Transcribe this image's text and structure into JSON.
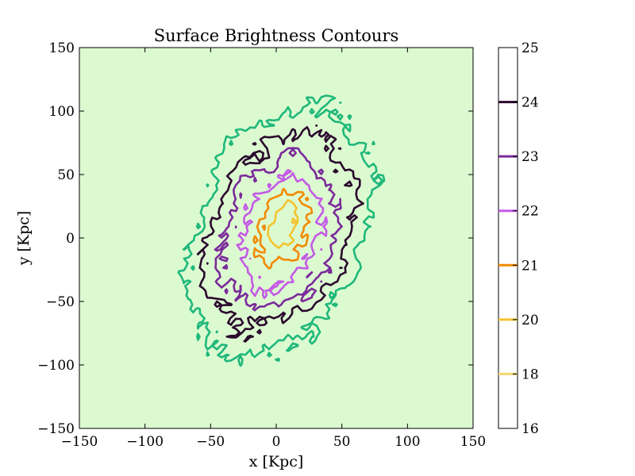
{
  "chart_data": {
    "type": "contour",
    "title": "Surface Brightness Contours",
    "xlabel": "x [Kpc]",
    "ylabel": "y [Kpc]",
    "xlim": [
      -150,
      150
    ],
    "ylim": [
      -150,
      150
    ],
    "x_ticks": [
      -150,
      -100,
      -50,
      0,
      50,
      100,
      150
    ],
    "y_ticks": [
      -150,
      -100,
      -50,
      0,
      50,
      100,
      150
    ],
    "x_tick_labels": [
      "−150",
      "−100",
      "−50",
      "0",
      "50",
      "100",
      "150"
    ],
    "y_tick_labels": [
      "−150",
      "−100",
      "−50",
      "0",
      "50",
      "100",
      "150"
    ],
    "background_color": "#dcfad0",
    "levels": [
      {
        "value": 16,
        "label": "16",
        "color": "#fff3a0"
      },
      {
        "value": 18,
        "label": "18",
        "color": "#f5d76e"
      },
      {
        "value": 20,
        "label": "20",
        "color": "#f4c430"
      },
      {
        "value": 21,
        "label": "21",
        "color": "#f28a00"
      },
      {
        "value": 22,
        "label": "22",
        "color": "#c45ae6"
      },
      {
        "value": 23,
        "label": "23",
        "color": "#7b2a9a"
      },
      {
        "value": 24,
        "label": "24",
        "color": "#2b0a2e"
      },
      {
        "value": 25,
        "label": "25",
        "color": "#1fb87a"
      }
    ],
    "colorbar_ticks": [
      "16",
      "18",
      "20",
      "21",
      "22",
      "23",
      "24",
      "25"
    ],
    "source_center": [
      2,
      5
    ],
    "source_axis_ratio": 0.62,
    "source_position_angle_deg": 70
  }
}
